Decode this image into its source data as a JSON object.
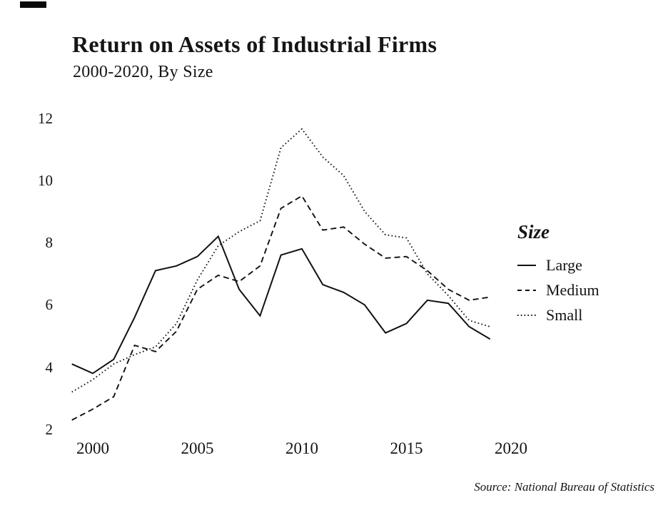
{
  "page": {
    "title": "Return on Assets of Industrial Firms",
    "subtitle": "2000-2020, By Size",
    "source_note": "Source: National Bureau of Statistics",
    "background_color": "#ffffff",
    "text_color": "#151515",
    "line_color": "#111111"
  },
  "legend": {
    "title": "Size",
    "entries": [
      {
        "label": "Large",
        "style": "solid"
      },
      {
        "label": "Medium",
        "style": "dashed"
      },
      {
        "label": "Small",
        "style": "dotted"
      }
    ]
  },
  "chart_data": {
    "type": "line",
    "title": "Return on Assets of Industrial Firms",
    "subtitle": "2000-2020, By Size",
    "xlabel": "",
    "ylabel": "",
    "grid": false,
    "legend_position": "right",
    "xlim": [
      1999,
      2020.7
    ],
    "ylim": [
      2,
      12
    ],
    "xticks": [
      2000,
      2005,
      2010,
      2015,
      2020
    ],
    "yticks": [
      2,
      4,
      6,
      8,
      10,
      12
    ],
    "x": [
      1999,
      2000,
      2001,
      2002,
      2003,
      2004,
      2005,
      2006,
      2007,
      2008,
      2009,
      2010,
      2011,
      2012,
      2013,
      2014,
      2015,
      2016,
      2017,
      2018,
      2019
    ],
    "series": [
      {
        "name": "Large",
        "style": "solid",
        "values": [
          4.1,
          3.8,
          4.25,
          5.6,
          7.1,
          7.25,
          7.55,
          8.2,
          6.5,
          5.65,
          7.6,
          7.8,
          6.65,
          6.4,
          6.0,
          5.1,
          5.4,
          6.15,
          6.05,
          5.3,
          4.9
        ]
      },
      {
        "name": "Medium",
        "style": "dashed",
        "values": [
          2.3,
          2.65,
          3.05,
          4.7,
          4.5,
          5.15,
          6.5,
          6.95,
          6.75,
          7.25,
          9.1,
          9.5,
          8.4,
          8.5,
          7.95,
          7.5,
          7.55,
          7.1,
          6.5,
          6.15,
          6.25
        ]
      },
      {
        "name": "Small",
        "style": "dotted",
        "values": [
          3.2,
          3.6,
          4.1,
          4.4,
          4.65,
          5.4,
          6.8,
          7.9,
          8.35,
          8.7,
          11.05,
          11.65,
          10.75,
          10.15,
          9.0,
          8.25,
          8.15,
          7.0,
          6.3,
          5.5,
          5.3
        ]
      }
    ]
  }
}
